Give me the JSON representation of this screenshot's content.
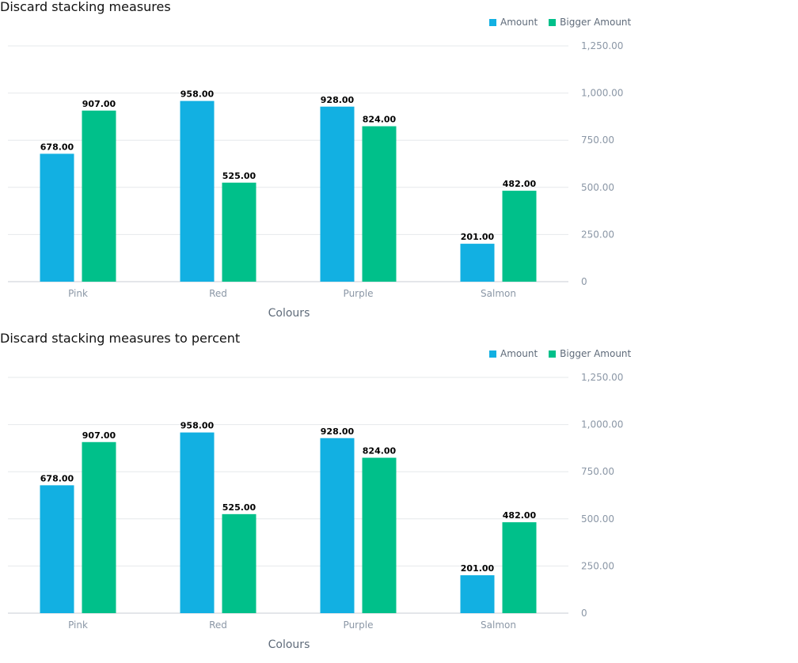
{
  "colors": {
    "amount": "#12b0e2",
    "bigger_amount": "#00c08a",
    "grid": "#e6e8eb",
    "axis_text": "#8b97a6"
  },
  "chart_data": [
    {
      "type": "bar",
      "title": "Discard stacking measures",
      "xlabel": "Colours",
      "ylabel": "",
      "categories": [
        "Pink",
        "Red",
        "Purple",
        "Salmon"
      ],
      "series": [
        {
          "name": "Amount",
          "values": [
            678,
            958,
            928,
            201
          ],
          "labels": [
            "678.00",
            "958.00",
            "928.00",
            "201.00"
          ]
        },
        {
          "name": "Bigger Amount",
          "values": [
            907,
            525,
            824,
            482
          ],
          "labels": [
            "907.00",
            "525.00",
            "824.00",
            "482.00"
          ]
        }
      ],
      "ylim": [
        0,
        1250
      ],
      "yticks": [
        0,
        250,
        500,
        750,
        1000,
        1250
      ],
      "ytick_labels": [
        "0",
        "250.00",
        "500.00",
        "750.00",
        "1,000.00",
        "1,250.00"
      ],
      "y_axis_side": "right",
      "grid": true,
      "legend_position": "top-right"
    },
    {
      "type": "bar",
      "title": "Discard stacking measures to percent",
      "xlabel": "Colours",
      "ylabel": "",
      "categories": [
        "Pink",
        "Red",
        "Purple",
        "Salmon"
      ],
      "series": [
        {
          "name": "Amount",
          "values": [
            678,
            958,
            928,
            201
          ],
          "labels": [
            "678.00",
            "958.00",
            "928.00",
            "201.00"
          ]
        },
        {
          "name": "Bigger Amount",
          "values": [
            907,
            525,
            824,
            482
          ],
          "labels": [
            "907.00",
            "525.00",
            "824.00",
            "482.00"
          ]
        }
      ],
      "ylim": [
        0,
        1250
      ],
      "yticks": [
        0,
        250,
        500,
        750,
        1000,
        1250
      ],
      "ytick_labels": [
        "0",
        "250.00",
        "500.00",
        "750.00",
        "1,000.00",
        "1,250.00"
      ],
      "y_axis_side": "right",
      "grid": true,
      "legend_position": "top-right"
    }
  ]
}
